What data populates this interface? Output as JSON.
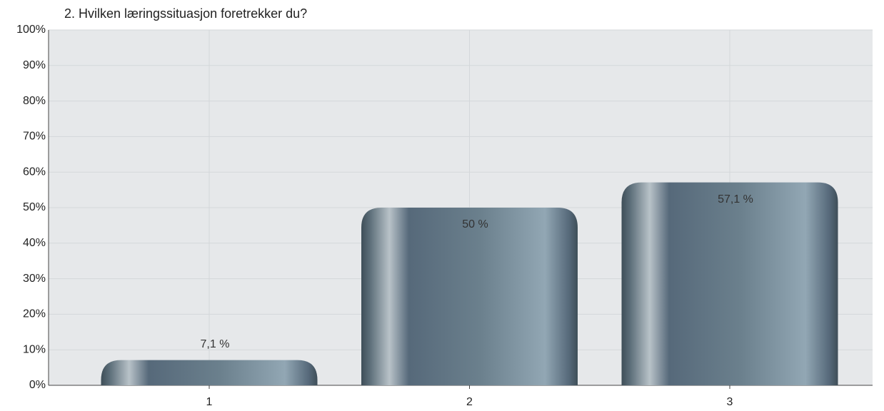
{
  "chart_data": {
    "type": "bar",
    "title": "2. Hvilken læringssituasjon foretrekker du?",
    "categories": [
      "1",
      "2",
      "3"
    ],
    "values": [
      7.1,
      50,
      57.1
    ],
    "value_labels": [
      "7,1 %",
      "50 %",
      "57,1 %"
    ],
    "color": "#6b808d",
    "ylim": [
      0,
      100
    ],
    "yticks": [
      {
        "value": 0,
        "label": "0%"
      },
      {
        "value": 10,
        "label": "10%"
      },
      {
        "value": 20,
        "label": "20%"
      },
      {
        "value": 30,
        "label": "30%"
      },
      {
        "value": 40,
        "label": "40%"
      },
      {
        "value": 50,
        "label": "50%"
      },
      {
        "value": 60,
        "label": "60%"
      },
      {
        "value": 70,
        "label": "70%"
      },
      {
        "value": 80,
        "label": "80%"
      },
      {
        "value": 90,
        "label": "90%"
      },
      {
        "value": 100,
        "label": "100%"
      }
    ],
    "grid": true
  }
}
